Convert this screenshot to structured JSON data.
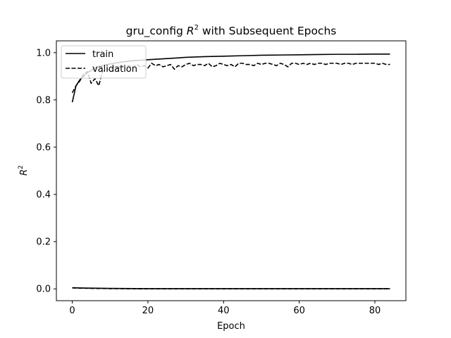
{
  "chart_data": {
    "type": "line",
    "title": {
      "prefix": "gru_config ",
      "symbol": "R",
      "sup": "2",
      "suffix": " with Subsequent Epochs"
    },
    "xlabel": "Epoch",
    "ylabel": {
      "symbol": "R",
      "sup": "2"
    },
    "xlim": [
      -4.2,
      88.2
    ],
    "ylim": [
      -0.05,
      1.05
    ],
    "xticks": [
      0,
      20,
      40,
      60,
      80
    ],
    "yticks": [
      0.0,
      0.2,
      0.4,
      0.6,
      0.8,
      1.0
    ],
    "xtick_labels": [
      "0",
      "20",
      "40",
      "60",
      "80"
    ],
    "ytick_labels": [
      "0.0",
      "0.2",
      "0.4",
      "0.6",
      "0.8",
      "1.0"
    ],
    "grid": false,
    "legend_position": "upper-left",
    "legend": [
      {
        "label": "train",
        "style": "solid"
      },
      {
        "label": "validation",
        "style": "dashed"
      }
    ],
    "series": [
      {
        "name": "train",
        "style": "solid",
        "color": "#000000",
        "x": [
          0,
          1,
          2,
          3,
          4,
          5,
          6,
          7,
          8,
          10,
          12,
          14,
          16,
          18,
          20,
          25,
          30,
          35,
          40,
          45,
          50,
          55,
          60,
          65,
          70,
          75,
          80,
          84
        ],
        "y": [
          0.79,
          0.86,
          0.885,
          0.9,
          0.915,
          0.925,
          0.935,
          0.94,
          0.945,
          0.952,
          0.958,
          0.962,
          0.966,
          0.968,
          0.97,
          0.975,
          0.98,
          0.983,
          0.985,
          0.987,
          0.989,
          0.99,
          0.991,
          0.992,
          0.993,
          0.993,
          0.994,
          0.994
        ]
      },
      {
        "name": "validation",
        "style": "dashed",
        "color": "#000000",
        "x": [
          0,
          1,
          2,
          3,
          4,
          5,
          6,
          7,
          8,
          9,
          10,
          11,
          12,
          13,
          14,
          15,
          16,
          17,
          18,
          19,
          20,
          21,
          22,
          23,
          24,
          25,
          26,
          27,
          28,
          29,
          30,
          31,
          32,
          33,
          34,
          35,
          36,
          37,
          38,
          39,
          40,
          41,
          42,
          43,
          44,
          45,
          46,
          47,
          48,
          49,
          50,
          51,
          52,
          53,
          54,
          55,
          56,
          57,
          58,
          59,
          60,
          61,
          62,
          63,
          64,
          65,
          66,
          67,
          68,
          69,
          70,
          71,
          72,
          73,
          74,
          75,
          76,
          77,
          78,
          79,
          80,
          81,
          82,
          83,
          84
        ],
        "y": [
          0.83,
          0.86,
          0.88,
          0.91,
          0.92,
          0.87,
          0.89,
          0.86,
          0.92,
          0.93,
          0.925,
          0.94,
          0.935,
          0.945,
          0.94,
          0.945,
          0.935,
          0.95,
          0.94,
          0.945,
          0.935,
          0.955,
          0.945,
          0.95,
          0.94,
          0.945,
          0.95,
          0.93,
          0.945,
          0.94,
          0.95,
          0.955,
          0.945,
          0.95,
          0.95,
          0.945,
          0.955,
          0.94,
          0.945,
          0.955,
          0.95,
          0.945,
          0.95,
          0.94,
          0.955,
          0.955,
          0.95,
          0.95,
          0.945,
          0.955,
          0.95,
          0.955,
          0.955,
          0.95,
          0.945,
          0.955,
          0.95,
          0.94,
          0.955,
          0.955,
          0.95,
          0.955,
          0.95,
          0.955,
          0.95,
          0.955,
          0.955,
          0.95,
          0.955,
          0.955,
          0.955,
          0.95,
          0.955,
          0.955,
          0.95,
          0.955,
          0.955,
          0.955,
          0.955,
          0.955,
          0.955,
          0.95,
          0.955,
          0.95,
          0.95
        ]
      },
      {
        "name": "",
        "style": "solid",
        "color": "#000000",
        "x": [
          0,
          2,
          5,
          10,
          20,
          40,
          60,
          84
        ],
        "y": [
          0.005,
          0.004,
          0.003,
          0.002,
          0.001,
          0.001,
          0.001,
          0.001
        ]
      },
      {
        "name": "",
        "style": "dashed",
        "color": "#000000",
        "x": [
          0,
          2,
          5,
          10,
          20,
          40,
          60,
          84
        ],
        "y": [
          0.004,
          0.003,
          0.002,
          0.001,
          0.0,
          0.0,
          0.0,
          0.0
        ]
      }
    ]
  }
}
